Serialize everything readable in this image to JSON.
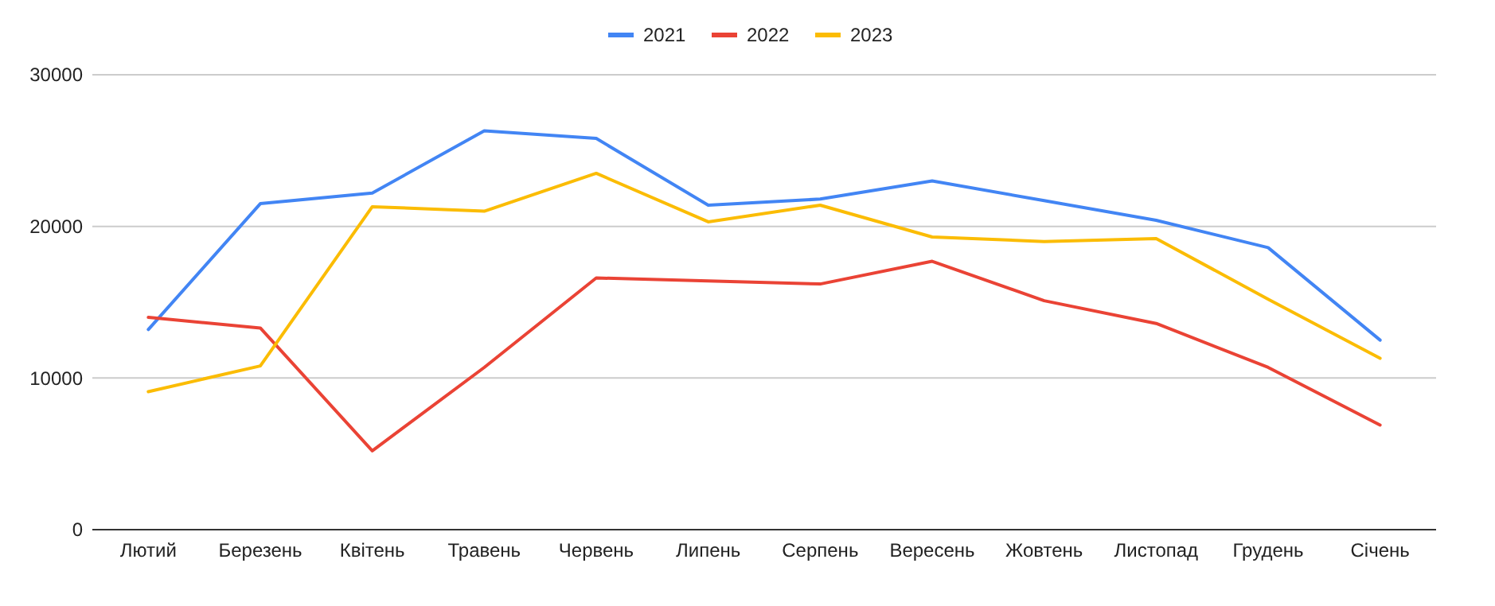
{
  "chart_data": {
    "type": "line",
    "categories": [
      "Лютий",
      "Березень",
      "Квітень",
      "Травень",
      "Червень",
      "Липень",
      "Серпень",
      "Вересень",
      "Жовтень",
      "Листопад",
      "Грудень",
      "Січень"
    ],
    "series": [
      {
        "name": "2021",
        "color": "#4285f4",
        "values": [
          13200,
          21500,
          22200,
          26300,
          25800,
          21400,
          21800,
          23000,
          21700,
          20400,
          18600,
          12500
        ]
      },
      {
        "name": "2022",
        "color": "#ea4335",
        "values": [
          14000,
          13300,
          5200,
          10700,
          16600,
          16400,
          16200,
          17700,
          15100,
          13600,
          10700,
          6900
        ]
      },
      {
        "name": "2023",
        "color": "#fbbc04",
        "values": [
          9100,
          10800,
          21300,
          21000,
          23500,
          20300,
          21400,
          19300,
          19000,
          19200,
          15200,
          11300
        ]
      }
    ],
    "ylim": [
      0,
      30000
    ],
    "yticks": [
      0,
      10000,
      20000,
      30000
    ],
    "grid": "y",
    "legend": "top",
    "marker": "none",
    "line_style": "solid"
  }
}
